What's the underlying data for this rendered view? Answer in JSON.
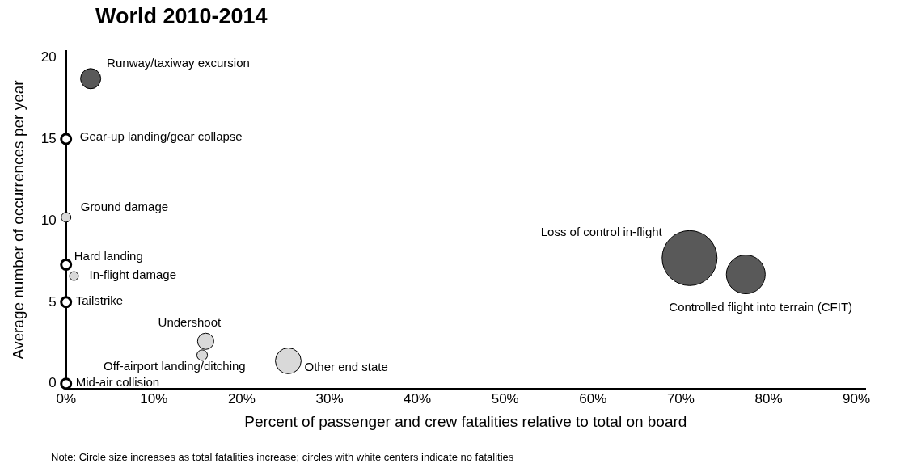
{
  "chart_data": {
    "type": "bubble",
    "title": "World 2010-2014",
    "xlabel": "Percent of passenger and crew fatalities relative to total on board",
    "ylabel": "Average number of occurrences per year",
    "xlim": [
      0,
      91
    ],
    "ylim": [
      -0.3,
      20.4
    ],
    "xticks": [
      {
        "value": 0,
        "label": "0%"
      },
      {
        "value": 10,
        "label": "10%"
      },
      {
        "value": 20,
        "label": "20%"
      },
      {
        "value": 30,
        "label": "30%"
      },
      {
        "value": 40,
        "label": "40%"
      },
      {
        "value": 50,
        "label": "50%"
      },
      {
        "value": 60,
        "label": "60%"
      },
      {
        "value": 70,
        "label": "70%"
      },
      {
        "value": 80,
        "label": "80%"
      },
      {
        "value": 90,
        "label": "90%"
      }
    ],
    "yticks": [
      0,
      5,
      10,
      15,
      20
    ],
    "grid": false,
    "legend": false,
    "series": [
      {
        "color": "#595959",
        "x": [
          2.8,
          71.0,
          77.4
        ],
        "values": [
          18.7,
          7.7,
          6.7
        ],
        "sizes": [
          0.135,
          1,
          0.5
        ]
      },
      {
        "color": "#d9d9d9",
        "x": [
          0,
          0.9,
          15.9,
          15.5,
          25.3
        ],
        "values": [
          10.2,
          6.6,
          2.6,
          1.75,
          1.4
        ],
        "sizes": [
          0.031,
          0.026,
          0.087,
          0.037,
          0.22
        ]
      },
      {
        "color": "#ffffff",
        "x": [
          0,
          0,
          0,
          0
        ],
        "values": [
          15,
          7.3,
          5,
          0
        ],
        "sizes": [
          0.031,
          0.031,
          0.031,
          0.031
        ]
      }
    ],
    "annotations": [
      {
        "text": "Runway/taxiway excursion",
        "x": 2.8,
        "y": 18.7
      },
      {
        "text": "Gear-up landing/gear collapse",
        "x": 0,
        "y": 15
      },
      {
        "text": "Ground damage",
        "x": 0,
        "y": 10.2
      },
      {
        "text": "Hard landing",
        "x": 0,
        "y": 7.3
      },
      {
        "text": "In-flight damage",
        "x": 0.9,
        "y": 6.6
      },
      {
        "text": "Tailstrike",
        "x": 0,
        "y": 5
      },
      {
        "text": "Mid-air collision",
        "x": 0,
        "y": 0
      },
      {
        "text": "Undershoot",
        "x": 15.9,
        "y": 2.6
      },
      {
        "text": "Off-airport landing/ditching",
        "x": 15.5,
        "y": 1.75
      },
      {
        "text": "Other end state",
        "x": 25.3,
        "y": 1.4
      },
      {
        "text": "Loss of control in-flight",
        "x": 71.0,
        "y": 7.7
      },
      {
        "text": "Controlled flight into terrain (CFIT)",
        "x": 77.4,
        "y": 6.7
      },
      "Note: Circle size increases as total fatalities increase; circles with white centers indicate no fatalities"
    ]
  }
}
